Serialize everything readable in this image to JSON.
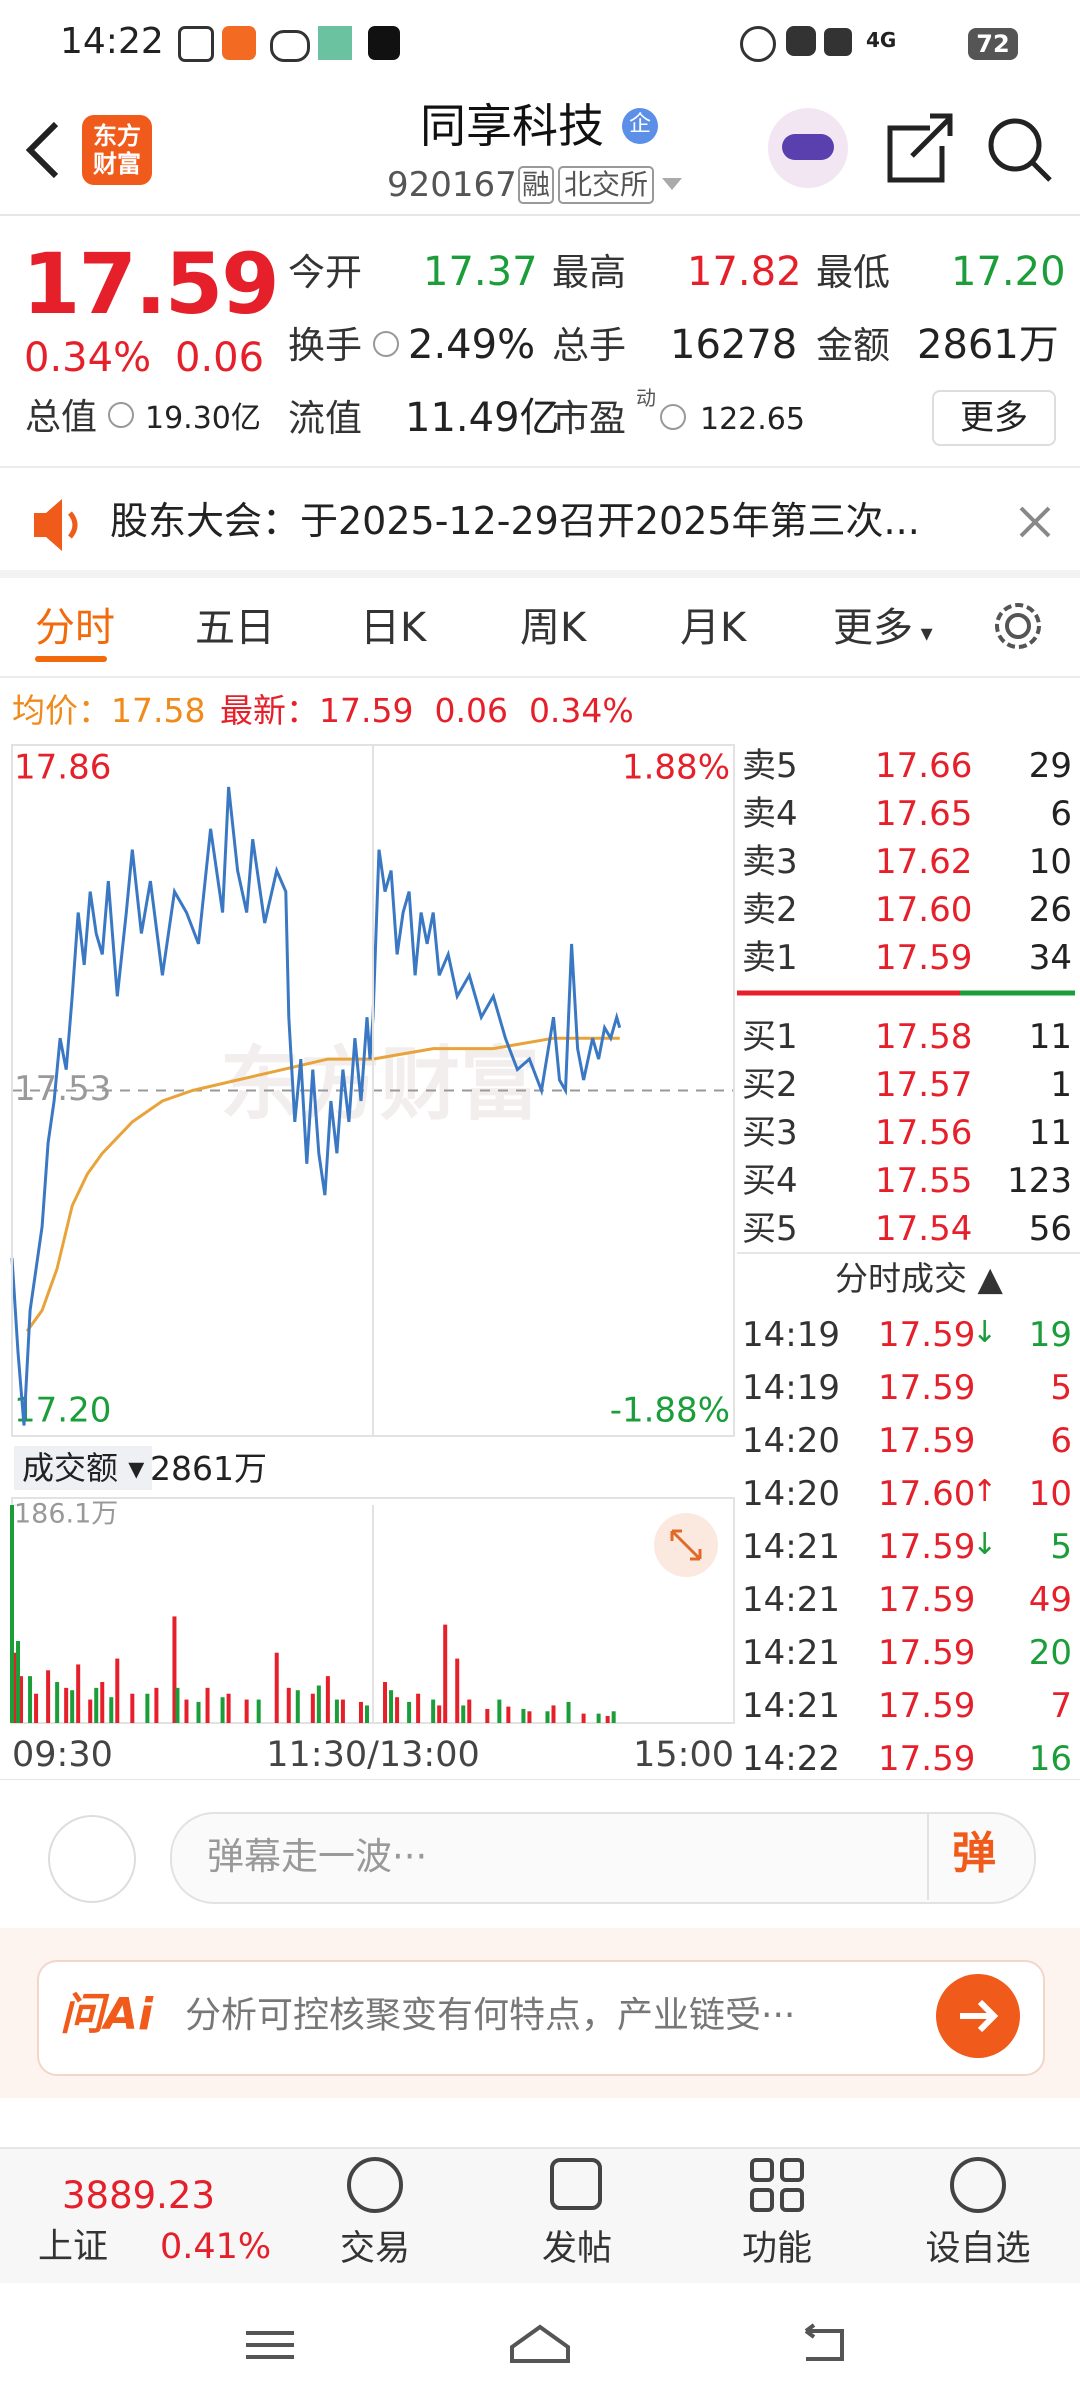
{
  "status_bar": {
    "time": "14:22",
    "network": "4G",
    "battery": "72"
  },
  "header": {
    "logo": "东方财富",
    "title": "同享科技",
    "badge": "企",
    "code": "920167",
    "tags": [
      "融",
      "北交所"
    ]
  },
  "quote": {
    "price": "17.59",
    "change_pct": "0.34%",
    "change": "0.06",
    "fields": [
      {
        "label": "今开",
        "value": "17.37",
        "color": "#1b9e3a"
      },
      {
        "label": "最高",
        "value": "17.82",
        "color": "#e5202a"
      },
      {
        "label": "最低",
        "value": "17.20",
        "color": "#1b9e3a"
      },
      {
        "label": "换手",
        "value": "2.49%",
        "color": "#222222"
      },
      {
        "label": "总手",
        "value": "16278",
        "color": "#222222"
      },
      {
        "label": "金额",
        "value": "2861万",
        "color": "#222222"
      }
    ],
    "total_cap": {
      "label": "总值",
      "value": "19.30亿"
    },
    "float_cap": {
      "label": "流值",
      "value": "11.49亿"
    },
    "pe": {
      "label": "市盈",
      "sup": "动",
      "value": "122.65"
    },
    "more": "更多"
  },
  "notice": {
    "text": "股东大会：于2025-12-29召开2025年第三次..."
  },
  "tabs": [
    "分时",
    "五日",
    "日K",
    "周K",
    "月K",
    "更多"
  ],
  "info_line": {
    "avg_label": "均价：",
    "avg": "17.58",
    "last_label": "最新：",
    "last": "17.59",
    "change": "0.06",
    "change_pct": "0.34%"
  },
  "chart_data": [
    {
      "type": "line",
      "xlim": [
        0,
        240
      ],
      "ylim": [
        17.2,
        17.86
      ],
      "yticks": [
        17.86,
        17.53,
        {
          "value": 17.2,
          "label": "17.20"
        }
      ],
      "y2lim": [
        -1.88,
        1.88
      ],
      "y2ticks": [
        {
          "value": 1.88,
          "label": "1.88%"
        },
        {
          "value": -1.88,
          "label": "-1.88%"
        }
      ],
      "series": [
        {
          "color": "#3b78c4",
          "x": [
            0,
            2,
            4,
            6,
            8,
            10,
            12,
            14,
            16,
            18,
            20,
            22,
            24,
            26,
            28,
            30,
            32,
            35,
            38,
            40,
            43,
            46,
            50,
            54,
            58,
            62,
            66,
            70,
            72,
            75,
            78,
            80,
            84,
            88,
            91,
            92,
            94,
            96,
            98,
            100,
            102,
            104,
            106,
            108,
            110,
            112,
            114,
            116,
            118,
            119,
            120,
            122,
            124,
            126,
            128,
            130,
            132,
            134,
            136,
            138,
            140,
            142,
            145,
            148,
            152,
            156,
            160,
            164,
            168,
            172,
            176,
            180,
            182,
            184,
            186,
            188,
            190,
            193,
            195,
            197,
            199,
            201,
            202
          ],
          "values": [
            17.37,
            17.28,
            17.21,
            17.32,
            17.36,
            17.4,
            17.48,
            17.52,
            17.58,
            17.55,
            17.62,
            17.7,
            17.65,
            17.72,
            17.68,
            17.66,
            17.73,
            17.62,
            17.7,
            17.76,
            17.68,
            17.73,
            17.64,
            17.72,
            17.7,
            17.67,
            17.78,
            17.7,
            17.82,
            17.74,
            17.7,
            17.77,
            17.69,
            17.74,
            17.72,
            17.6,
            17.5,
            17.56,
            17.46,
            17.55,
            17.47,
            17.43,
            17.52,
            17.47,
            17.55,
            17.5,
            17.58,
            17.52,
            17.6,
            17.56,
            17.6,
            17.76,
            17.72,
            17.74,
            17.66,
            17.7,
            17.72,
            17.64,
            17.7,
            17.67,
            17.7,
            17.64,
            17.66,
            17.62,
            17.64,
            17.6,
            17.62,
            17.58,
            17.55,
            17.56,
            17.53,
            17.6,
            17.54,
            17.53,
            17.67,
            17.57,
            17.54,
            17.58,
            17.56,
            17.59,
            17.58,
            17.6,
            17.59
          ]
        },
        {
          "color": "#e8a33a",
          "x": [
            5,
            10,
            15,
            20,
            25,
            30,
            40,
            50,
            60,
            75,
            90,
            105,
            120,
            140,
            160,
            180,
            202
          ],
          "values": [
            17.3,
            17.32,
            17.36,
            17.42,
            17.45,
            17.47,
            17.5,
            17.52,
            17.53,
            17.54,
            17.55,
            17.56,
            17.56,
            17.57,
            17.57,
            17.58,
            17.58
          ]
        }
      ]
    },
    {
      "type": "bar",
      "title": "成交额",
      "total": "2861万",
      "xlim": [
        0,
        240
      ],
      "ylim": [
        0,
        186.1
      ],
      "yticks": [
        {
          "value": 186.1,
          "label": "186.1万"
        }
      ],
      "xticks": [
        {
          "value": 0,
          "label": "09:30"
        },
        {
          "value": 120,
          "label": "11:30/13:00"
        },
        {
          "value": 240,
          "label": "15:00"
        }
      ],
      "series": [
        {
          "color": "#e5202a",
          "x": [
            1,
            3,
            8,
            12,
            18,
            22,
            26,
            30,
            35,
            40,
            48,
            54,
            58,
            65,
            72,
            78,
            88,
            92,
            100,
            105,
            110,
            116,
            124,
            128,
            135,
            142,
            144,
            148,
            152,
            158,
            165,
            172,
            180,
            190,
            198
          ],
          "values": [
            60,
            40,
            25,
            45,
            30,
            50,
            20,
            35,
            55,
            25,
            30,
            91,
            20,
            30,
            25,
            20,
            60,
            30,
            25,
            40,
            20,
            18,
            35,
            22,
            25,
            15,
            84,
            55,
            20,
            12,
            14,
            10,
            15,
            8,
            6
          ]
        },
        {
          "color": "#1b9e3a",
          "x": [
            0,
            2,
            6,
            15,
            20,
            28,
            33,
            45,
            55,
            62,
            70,
            82,
            95,
            102,
            108,
            118,
            126,
            132,
            140,
            150,
            162,
            170,
            178,
            185,
            195,
            200
          ],
          "values": [
            186.1,
            70,
            40,
            35,
            28,
            30,
            22,
            25,
            30,
            18,
            22,
            20,
            28,
            32,
            20,
            15,
            28,
            18,
            20,
            15,
            20,
            12,
            10,
            18,
            8,
            10
          ]
        }
      ]
    }
  ],
  "order_book": {
    "asks": [
      {
        "label": "卖5",
        "price": "17.66",
        "volume": "29"
      },
      {
        "label": "卖4",
        "price": "17.65",
        "volume": "6"
      },
      {
        "label": "卖3",
        "price": "17.62",
        "volume": "10"
      },
      {
        "label": "卖2",
        "price": "17.60",
        "volume": "26"
      },
      {
        "label": "卖1",
        "price": "17.59",
        "volume": "34"
      }
    ],
    "bids": [
      {
        "label": "买1",
        "price": "17.58",
        "volume": "11"
      },
      {
        "label": "买2",
        "price": "17.57",
        "volume": "1"
      },
      {
        "label": "买3",
        "price": "17.56",
        "volume": "11"
      },
      {
        "label": "买4",
        "price": "17.55",
        "volume": "123"
      },
      {
        "label": "买5",
        "price": "17.54",
        "volume": "56"
      }
    ]
  },
  "trades": {
    "title": "分时成交",
    "rows": [
      {
        "time": "14:19",
        "price": "17.59",
        "arrow": "↓",
        "arrow_color": "#1b9e3a",
        "volume": "19",
        "color": "#1b9e3a"
      },
      {
        "time": "14:19",
        "price": "17.59",
        "arrow": "",
        "arrow_color": "#1b9e3a",
        "volume": "5",
        "color": "#e5202a"
      },
      {
        "time": "14:20",
        "price": "17.59",
        "arrow": "",
        "arrow_color": "#1b9e3a",
        "volume": "6",
        "color": "#e5202a"
      },
      {
        "time": "14:20",
        "price": "17.60",
        "arrow": "↑",
        "arrow_color": "#e5202a",
        "volume": "10",
        "color": "#e5202a"
      },
      {
        "time": "14:21",
        "price": "17.59",
        "arrow": "↓",
        "arrow_color": "#1b9e3a",
        "volume": "5",
        "color": "#1b9e3a"
      },
      {
        "time": "14:21",
        "price": "17.59",
        "arrow": "",
        "arrow_color": "#1b9e3a",
        "volume": "49",
        "color": "#e5202a"
      },
      {
        "time": "14:21",
        "price": "17.59",
        "arrow": "",
        "arrow_color": "#1b9e3a",
        "volume": "20",
        "color": "#1b9e3a"
      },
      {
        "time": "14:21",
        "price": "17.59",
        "arrow": "",
        "arrow_color": "#1b9e3a",
        "volume": "7",
        "color": "#e5202a"
      },
      {
        "time": "14:22",
        "price": "17.59",
        "arrow": "",
        "arrow_color": "#1b9e3a",
        "volume": "16",
        "color": "#1b9e3a"
      }
    ]
  },
  "comment": {
    "placeholder": "弹幕走一波···",
    "button": "弹"
  },
  "ai": {
    "logo": "问Ai",
    "prompt": "分析可控核聚变有何特点，产业链受···"
  },
  "bottom_nav": {
    "index_value": "3889.23",
    "index_name": "上证",
    "index_change": "0.41%",
    "items": [
      "交易",
      "发帖",
      "功能",
      "设自选"
    ]
  }
}
